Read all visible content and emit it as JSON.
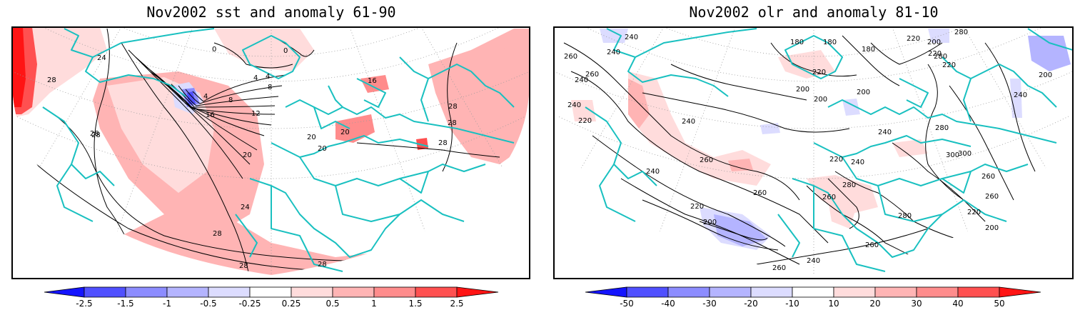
{
  "panels": [
    {
      "title": "Nov2002 sst and anomaly 61-90",
      "contour_labels": [
        "24",
        "28",
        "28",
        "28",
        "28",
        "0",
        "0",
        "4",
        "4",
        "4",
        "8",
        "8",
        "12",
        "16",
        "16",
        "20",
        "20",
        "20",
        "20",
        "24",
        "28",
        "28",
        "28",
        "28",
        "28"
      ],
      "colorbar": {
        "tick_labels": [
          "-2.5",
          "-1.5",
          "-1",
          "-0.5",
          "-0.25",
          "0.25",
          "0.5",
          "1",
          "1.5",
          "2.5"
        ],
        "colors": [
          "#1414ff",
          "#5050ff",
          "#8c8cff",
          "#b4b4ff",
          "#dcdcff",
          "#ffffff",
          "#ffdcdc",
          "#ffb4b4",
          "#ff8c8c",
          "#ff5050",
          "#ff1414"
        ]
      }
    },
    {
      "title": "Nov2002 olr and anomaly 81-10",
      "contour_labels": [
        "240",
        "180",
        "180",
        "180",
        "200",
        "220",
        "220",
        "220",
        "280",
        "260",
        "260",
        "240",
        "240",
        "240",
        "220",
        "220",
        "200",
        "200",
        "200",
        "200",
        "240",
        "280",
        "280",
        "260",
        "260",
        "300",
        "300",
        "240",
        "260",
        "240",
        "260",
        "260",
        "280",
        "220",
        "240",
        "200",
        "220",
        "280",
        "260",
        "260",
        "240",
        "240",
        "220",
        "200"
      ],
      "colorbar": {
        "tick_labels": [
          "-50",
          "-40",
          "-30",
          "-20",
          "-10",
          "10",
          "20",
          "30",
          "40",
          "50"
        ],
        "colors": [
          "#1414ff",
          "#5050ff",
          "#8c8cff",
          "#b4b4ff",
          "#dcdcff",
          "#ffffff",
          "#ffdcdc",
          "#ffb4b4",
          "#ff8c8c",
          "#ff5050",
          "#ff1414"
        ]
      }
    }
  ],
  "colors": {
    "coastline": "#19c0c0",
    "contour": "#000000",
    "positive_anomaly": "#ffb4b4",
    "negative_anomaly": "#b4b4ff",
    "grid": "#9a9a9a"
  }
}
